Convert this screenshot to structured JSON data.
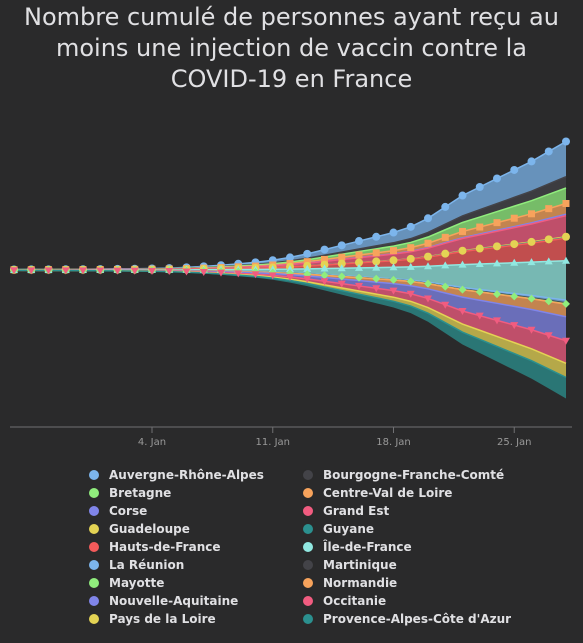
{
  "chart_data": {
    "type": "area",
    "title": "Nombre cumulé de personnes ayant reçu au moins une injection de vaccin contre la COVID-19 en France",
    "title_lines": [
      "Nombre cumulé de personnes ayant reçu au",
      "moins une injection de vaccin contre la",
      "COVID-19 en France"
    ],
    "stacking": "streamgraph",
    "grid": false,
    "legend_position": "bottom",
    "x_start": "2020-12-27",
    "x_end": "2021-01-28",
    "x_ticks": [
      {
        "date": "2021-01-04",
        "label": "4. Jan"
      },
      {
        "date": "2021-01-11",
        "label": "11. Jan"
      },
      {
        "date": "2021-01-18",
        "label": "18. Jan"
      },
      {
        "date": "2021-01-25",
        "label": "25. Jan"
      }
    ],
    "x": [
      "2020-12-27",
      "2020-12-28",
      "2020-12-29",
      "2020-12-30",
      "2020-12-31",
      "2021-01-01",
      "2021-01-02",
      "2021-01-03",
      "2021-01-04",
      "2021-01-05",
      "2021-01-06",
      "2021-01-07",
      "2021-01-08",
      "2021-01-09",
      "2021-01-10",
      "2021-01-11",
      "2021-01-12",
      "2021-01-13",
      "2021-01-14",
      "2021-01-15",
      "2021-01-16",
      "2021-01-17",
      "2021-01-18",
      "2021-01-19",
      "2021-01-20",
      "2021-01-21",
      "2021-01-22",
      "2021-01-23",
      "2021-01-24",
      "2021-01-25",
      "2021-01-26",
      "2021-01-27",
      "2021-01-28"
    ],
    "series": [
      {
        "name": "Auvergne-Rhône-Alpes",
        "color": "#7cb5ec",
        "marker": "circle",
        "weight": 12.5
      },
      {
        "name": "Bourgogne-Franche-Comté",
        "color": "#434348",
        "marker": "circle",
        "weight": 4.0
      },
      {
        "name": "Bretagne",
        "color": "#90ed7d",
        "marker": "diamond",
        "weight": 5.5
      },
      {
        "name": "Centre-Val de Loire",
        "color": "#f7a35c",
        "marker": "square",
        "weight": 3.8
      },
      {
        "name": "Corse",
        "color": "#8085e9",
        "marker": "triangle",
        "weight": 0.5
      },
      {
        "name": "Grand Est",
        "color": "#f15c80",
        "marker": "triangle-down",
        "weight": 7.5
      },
      {
        "name": "Guadeloupe",
        "color": "#e4d354",
        "marker": "circle",
        "weight": 0.3
      },
      {
        "name": "Guyane",
        "color": "#2b908f",
        "marker": "diamond",
        "weight": 0.2
      },
      {
        "name": "Hauts-de-France",
        "color": "#f45b5b",
        "marker": "square",
        "weight": 8.0
      },
      {
        "name": "Île-de-France",
        "color": "#91e8e1",
        "marker": "triangle",
        "weight": 14.0
      },
      {
        "name": "La Réunion",
        "color": "#7cb5ec",
        "marker": "triangle-down",
        "weight": 1.0
      },
      {
        "name": "Martinique",
        "color": "#434348",
        "marker": "circle",
        "weight": 0.3
      },
      {
        "name": "Mayotte",
        "color": "#90ed7d",
        "marker": "diamond",
        "weight": 0.1
      },
      {
        "name": "Normandie",
        "color": "#f7a35c",
        "marker": "square",
        "weight": 4.5
      },
      {
        "name": "Nouvelle-Aquitaine",
        "color": "#8085e9",
        "marker": "triangle",
        "weight": 8.5
      },
      {
        "name": "Occitanie",
        "color": "#f15c80",
        "marker": "triangle-down",
        "weight": 8.0
      },
      {
        "name": "Pays de la Loire",
        "color": "#e4d354",
        "marker": "circle",
        "weight": 5.0
      },
      {
        "name": "Provence-Alpes-Côte d'Azur",
        "color": "#2b908f",
        "marker": "diamond",
        "weight": 7.5
      }
    ],
    "cumulative_total_index": [
      0,
      0.05,
      0.1,
      0.15,
      0.2,
      0.3,
      0.4,
      0.5,
      0.7,
      1.0,
      1.5,
      2.2,
      3.0,
      4.0,
      5.0,
      6.5,
      8.5,
      11,
      14,
      17,
      20,
      23,
      26,
      30,
      36,
      44,
      52,
      58,
      64,
      70,
      76,
      83,
      90
    ]
  }
}
